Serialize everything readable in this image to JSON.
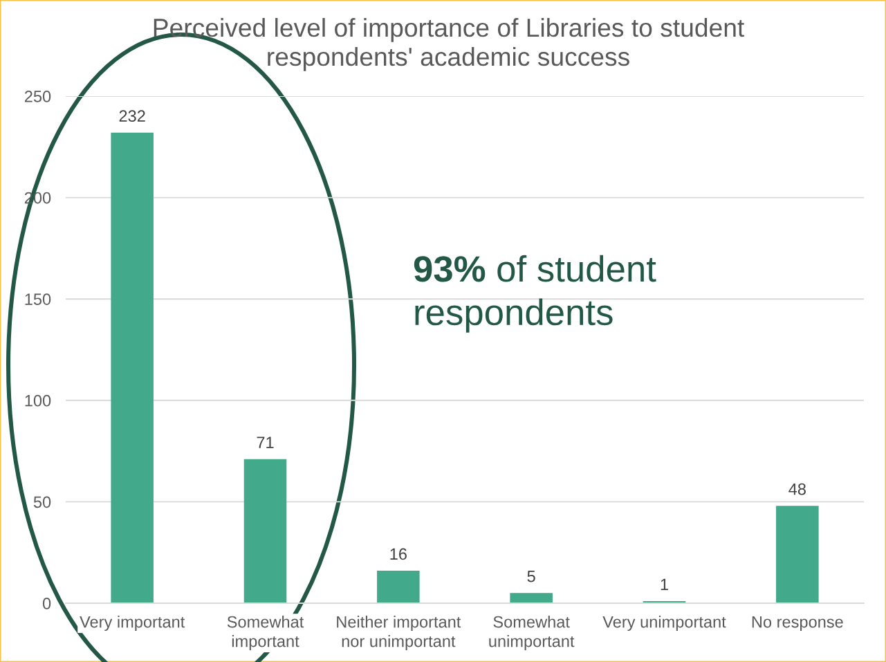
{
  "chart_data": {
    "type": "bar",
    "title": "Perceived level of importance of Libraries to student respondents' academic success",
    "categories": [
      "Very important",
      "Somewhat important",
      "Neither important nor unimportant",
      "Somewhat unimportant",
      "Very unimportant",
      "No response"
    ],
    "values": [
      232,
      71,
      16,
      5,
      1,
      48
    ],
    "color": "#43a98b",
    "ylim": [
      0,
      250
    ],
    "yticks": [
      0,
      50,
      100,
      150,
      200,
      250
    ],
    "grid": "y",
    "data_labels": true,
    "annotations": [
      "93% of student respondents"
    ]
  }
}
